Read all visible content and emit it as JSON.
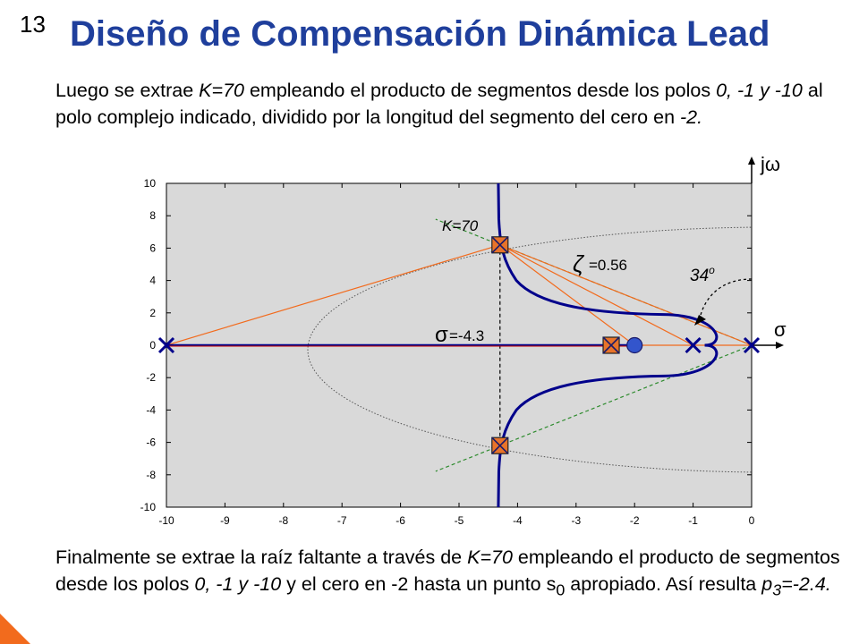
{
  "slide_number": "13",
  "title": "Diseño de Compensación Dinámica Lead",
  "paragraph1": {
    "t1": "Luego se extrae ",
    "k": "K=70",
    "t2": " empleando el producto de segmentos desde los polos ",
    "poles": "0, -1 y -10",
    "t3": " al polo complejo indicado, dividido por la longitud del segmento del cero en ",
    "zero": "-2.",
    "t4": ""
  },
  "paragraph2": {
    "t1": "Finalmente se extrae la raíz faltante a través de ",
    "k": "K=70",
    "t2": " empleando el producto de segmentos desde los polos ",
    "poles": "0, -1 y -10",
    "t3": "  y el cero en -2 hasta un punto s",
    "sub": "0",
    "t4": " apropiado. Así resulta ",
    "p": "p",
    "psub": "3",
    "pval": "=-2.4."
  },
  "chart_data": {
    "type": "scatter",
    "title": "",
    "xlabel": "",
    "ylabel": "",
    "xlim": [
      -10,
      0
    ],
    "ylim": [
      -10,
      10
    ],
    "xticks": [
      -10,
      -9,
      -8,
      -7,
      -6,
      -5,
      -4,
      -3,
      -2,
      -1,
      0
    ],
    "yticks": [
      10,
      8,
      6,
      4,
      2,
      0,
      -2,
      -4,
      -6,
      -8,
      -10
    ],
    "grid": false,
    "open_loop_poles": [
      {
        "re": 0,
        "im": 0
      },
      {
        "re": -1,
        "im": 0
      },
      {
        "re": -10,
        "im": 0
      }
    ],
    "zeros": [
      {
        "re": -2,
        "im": 0
      }
    ],
    "closed_loop_poles": [
      {
        "re": -4.3,
        "im": 6.2
      },
      {
        "re": -4.3,
        "im": -6.2
      },
      {
        "re": -2.4,
        "im": 0
      }
    ],
    "damping_ratio": 0.56,
    "axis_labels": {
      "imag": "jω",
      "real": "σ"
    },
    "annotations": {
      "k_label": "K=70",
      "zeta_symbol": "ζ",
      "zeta_value": "=0.56",
      "sigma_symbol": "σ",
      "sigma_value": "=-4.3",
      "angle": "34",
      "angle_unit": "o"
    },
    "colors": {
      "plot_bg": "#d9d9d9",
      "root_locus": "#00008b",
      "segments": "#f26b1d",
      "marker_fill": "#e8732a",
      "damping_line": "#2e8b2e",
      "zero_fill": "#3355cc"
    }
  }
}
